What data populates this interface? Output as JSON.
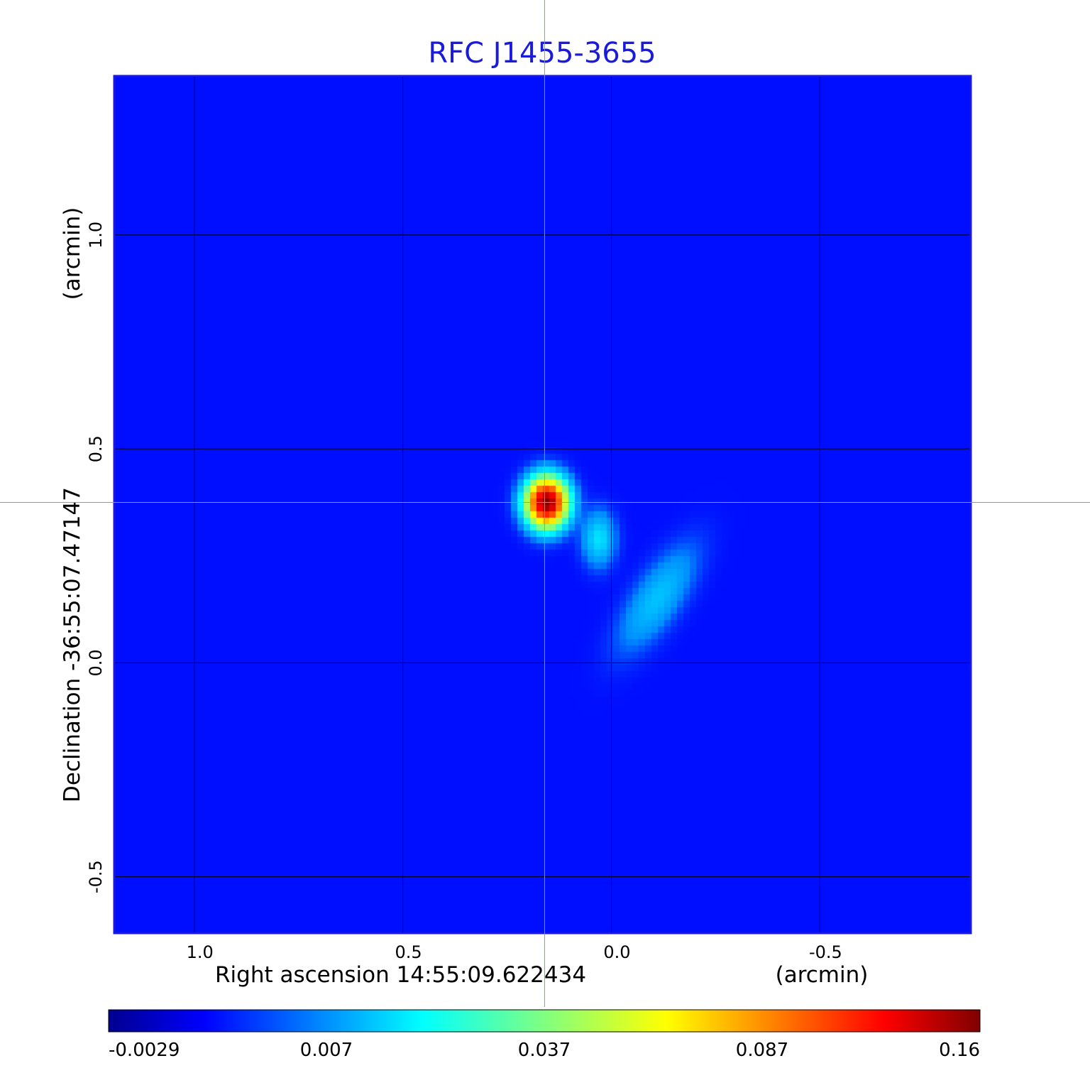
{
  "chart_data": {
    "type": "heatmap",
    "title": "RFC J1455-3655",
    "xlabel": "Right ascension  14:55:09.622434",
    "xunit": "(arcmin)",
    "ylabel": "Declination  -36:55:07.47147",
    "yunit": "(arcmin)",
    "x_range": [
      1.19,
      -0.86
    ],
    "y_range": [
      -0.63,
      1.37
    ],
    "x_ticks": [
      1.0,
      0.5,
      0.0,
      -0.5
    ],
    "x_tick_labels": [
      "1.0",
      "0.5",
      "0.0",
      "-0.5"
    ],
    "y_ticks": [
      1.0,
      0.5,
      0.0,
      -0.5
    ],
    "y_tick_labels": [
      "1.0",
      "0.5",
      "0.0",
      "-0.5"
    ],
    "grid": true,
    "crosshair": {
      "x": 0.16,
      "y": 0.375,
      "color": "#33dd33"
    },
    "colormap": "jet",
    "colorbar": {
      "position": "bottom",
      "tick_labels": [
        "-0.0029",
        "0.007",
        "0.037",
        "0.087",
        "0.16"
      ],
      "tick_values": [
        -0.0029,
        0.007,
        0.037,
        0.087,
        0.16
      ]
    },
    "background_level": 0.002,
    "features": [
      {
        "name": "core",
        "x": 0.155,
        "y": 0.375,
        "peak": 0.16,
        "sx": 0.03,
        "sy": 0.035
      },
      {
        "name": "knot",
        "x": 0.03,
        "y": 0.29,
        "peak": 0.015,
        "sx": 0.025,
        "sy": 0.04
      },
      {
        "name": "jet",
        "x": -0.11,
        "y": 0.15,
        "peak": 0.011,
        "sx": 0.035,
        "sy": 0.09,
        "angle_deg": -35
      }
    ],
    "styles": {
      "title_color": "#1a1adc",
      "frame_color": "#1a1adc",
      "grid_color": "#000000"
    }
  }
}
